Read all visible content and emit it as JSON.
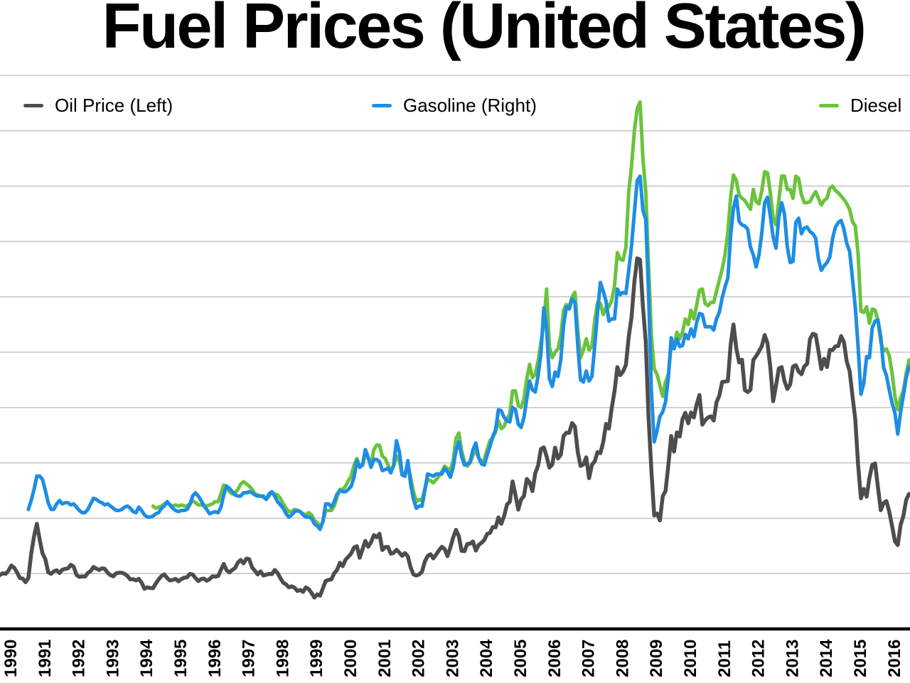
{
  "chart_data": {
    "type": "line",
    "title": "Fuel Prices (United States)",
    "grid": "horizontal",
    "h_gridlines": 10,
    "legend_position": "top-row-inside-plot",
    "x_axis": {
      "tick_labels": [
        "1990",
        "1991",
        "1992",
        "1993",
        "1994",
        "1995",
        "1996",
        "1997",
        "1998",
        "1999",
        "2000",
        "2001",
        "2002",
        "2003",
        "2004",
        "2005",
        "2006",
        "2007",
        "2008",
        "2009",
        "2010",
        "2011",
        "2012",
        "2013",
        "2014",
        "2015",
        "2016"
      ],
      "tick_label_rotation_deg": -90,
      "range_start_year": 1989.7,
      "range_end_year": 2016.5
    },
    "left_axis": {
      "min": 0,
      "max": 200,
      "labels_visible": false
    },
    "right_axis": {
      "min": 0,
      "max": 5,
      "labels_visible": false
    },
    "style": {
      "background": "#ffffff",
      "gridline_color": "#c8c8c8",
      "axis_color": "#000000",
      "text_color": "#000000"
    },
    "series": [
      {
        "id": "oil-price",
        "name": "Oil Price (Left)",
        "axis": "left",
        "color": "#4d4d4d",
        "line_width": 5.5,
        "frequency": "monthly",
        "start_year": 1989,
        "start_month": 7,
        "values": [
          19.6,
          18.5,
          19.6,
          20.1,
          19.9,
          21.1,
          22.9,
          22.1,
          20.4,
          18.4,
          18.2,
          16.9,
          18.4,
          27.2,
          33.5,
          38.0,
          32.3,
          27.3,
          25.2,
          20.5,
          19.9,
          20.8,
          21.2,
          20.2,
          21.4,
          21.7,
          21.9,
          23.2,
          22.5,
          19.5,
          18.8,
          19.0,
          18.9,
          20.2,
          20.9,
          22.4,
          21.8,
          21.3,
          21.9,
          21.7,
          20.3,
          19.4,
          19.0,
          20.1,
          20.3,
          20.3,
          19.9,
          19.1,
          17.9,
          18.0,
          17.5,
          18.1,
          16.7,
          14.5,
          15.0,
          14.8,
          14.7,
          16.4,
          17.9,
          19.1,
          19.7,
          18.4,
          17.5,
          17.7,
          18.1,
          17.2,
          18.0,
          18.5,
          18.6,
          19.9,
          19.7,
          18.4,
          17.3,
          18.0,
          18.2,
          17.4,
          18.0,
          19.0,
          18.9,
          19.1,
          21.4,
          23.5,
          21.2,
          20.4,
          21.3,
          22.0,
          24.0,
          24.9,
          23.7,
          25.4,
          25.2,
          22.2,
          21.0,
          19.7,
          20.8,
          19.3,
          19.6,
          19.9,
          19.8,
          21.3,
          20.2,
          18.3,
          16.7,
          16.1,
          15.0,
          15.4,
          14.9,
          13.7,
          14.1,
          13.4,
          15.0,
          14.4,
          13.0,
          11.3,
          12.5,
          12.0,
          14.7,
          17.3,
          17.7,
          17.9,
          20.1,
          21.3,
          23.9,
          22.7,
          25.0,
          26.1,
          27.3,
          29.4,
          29.9,
          25.7,
          28.8,
          31.8,
          29.7,
          31.3,
          33.9,
          33.1,
          34.4,
          28.5,
          29.6,
          29.6,
          27.2,
          27.5,
          28.6,
          27.6,
          26.4,
          27.4,
          26.2,
          22.2,
          19.7,
          19.3,
          19.7,
          20.7,
          24.4,
          26.3,
          27.0,
          25.5,
          26.9,
          28.4,
          29.7,
          28.9,
          26.3,
          29.4,
          33.0,
          35.8,
          33.5,
          28.2,
          28.1,
          30.7,
          30.8,
          31.6,
          28.3,
          30.3,
          31.1,
          32.1,
          34.3,
          34.7,
          36.8,
          36.7,
          40.3,
          38.0,
          40.8,
          44.9,
          46.0,
          53.3,
          48.5,
          43.1,
          46.8,
          48.0,
          54.2,
          53.0,
          49.8,
          56.3,
          59.0,
          65.0,
          65.6,
          62.4,
          58.3,
          59.4,
          65.5,
          61.6,
          62.9,
          69.7,
          70.9,
          70.9,
          74.4,
          73.1,
          63.9,
          58.9,
          59.4,
          62.0,
          54.5,
          59.3,
          60.6,
          63.9,
          63.5,
          67.5,
          74.1,
          72.4,
          79.9,
          85.9,
          94.6,
          91.7,
          93.0,
          95.4,
          105.6,
          112.6,
          125.4,
          133.9,
          133.4,
          116.6,
          103.9,
          76.7,
          57.4,
          41.0,
          41.7,
          39.2,
          48.0,
          49.8,
          59.2,
          69.7,
          64.1,
          71.0,
          69.5,
          75.8,
          78.1,
          74.3,
          78.2,
          76.4,
          81.2,
          84.5,
          73.8,
          75.4,
          76.4,
          76.8,
          75.3,
          81.9,
          84.3,
          89.2,
          89.4,
          89.6,
          102.9,
          110.0,
          101.3,
          96.3,
          97.3,
          86.3,
          85.6,
          86.4,
          97.2,
          98.6,
          100.3,
          102.2,
          106.2,
          103.3,
          94.7,
          82.3,
          87.9,
          94.1,
          94.6,
          89.6,
          86.7,
          88.3,
          94.8,
          95.3,
          93.0,
          92.0,
          94.8,
          95.8,
          104.7,
          106.6,
          106.3,
          100.5,
          93.9,
          97.6,
          94.6,
          100.8,
          100.8,
          102.1,
          102.2,
          105.8,
          103.6,
          96.5,
          93.2,
          84.4,
          75.8,
          59.3,
          47.2,
          50.6,
          47.8,
          54.5,
          59.3,
          59.8,
          51.2,
          42.9,
          45.5,
          46.2,
          42.4,
          37.2,
          31.7,
          30.3,
          37.6,
          40.8,
          46.7,
          48.8
        ]
      },
      {
        "id": "gasoline",
        "name": "Gasoline (Right)",
        "axis": "right",
        "color": "#1e8de4",
        "line_width": 5,
        "frequency": "monthly",
        "start_year": 1990,
        "start_month": 7,
        "values": [
          1.08,
          1.16,
          1.26,
          1.38,
          1.38,
          1.35,
          1.25,
          1.14,
          1.08,
          1.08,
          1.13,
          1.16,
          1.13,
          1.14,
          1.14,
          1.12,
          1.13,
          1.1,
          1.07,
          1.05,
          1.05,
          1.08,
          1.13,
          1.18,
          1.17,
          1.15,
          1.14,
          1.12,
          1.13,
          1.11,
          1.09,
          1.07,
          1.07,
          1.08,
          1.1,
          1.11,
          1.09,
          1.06,
          1.05,
          1.1,
          1.07,
          1.03,
          1.01,
          1.01,
          1.02,
          1.04,
          1.05,
          1.09,
          1.11,
          1.15,
          1.12,
          1.09,
          1.07,
          1.06,
          1.07,
          1.07,
          1.08,
          1.12,
          1.2,
          1.23,
          1.2,
          1.16,
          1.11,
          1.08,
          1.04,
          1.05,
          1.06,
          1.05,
          1.1,
          1.21,
          1.29,
          1.27,
          1.24,
          1.21,
          1.2,
          1.2,
          1.23,
          1.23,
          1.24,
          1.23,
          1.21,
          1.2,
          1.2,
          1.2,
          1.17,
          1.22,
          1.24,
          1.2,
          1.15,
          1.12,
          1.09,
          1.04,
          1.01,
          1.03,
          1.06,
          1.07,
          1.06,
          1.03,
          1.01,
          1.01,
          1.0,
          0.95,
          0.93,
          0.9,
          0.97,
          1.13,
          1.13,
          1.1,
          1.15,
          1.22,
          1.25,
          1.24,
          1.24,
          1.26,
          1.29,
          1.37,
          1.52,
          1.46,
          1.48,
          1.62,
          1.55,
          1.46,
          1.53,
          1.53,
          1.51,
          1.43,
          1.44,
          1.45,
          1.41,
          1.48,
          1.7,
          1.6,
          1.39,
          1.38,
          1.52,
          1.31,
          1.17,
          1.09,
          1.11,
          1.11,
          1.25,
          1.4,
          1.39,
          1.38,
          1.4,
          1.4,
          1.4,
          1.45,
          1.42,
          1.37,
          1.46,
          1.61,
          1.69,
          1.56,
          1.48,
          1.49,
          1.51,
          1.62,
          1.68,
          1.55,
          1.49,
          1.48,
          1.57,
          1.65,
          1.74,
          1.8,
          1.98,
          1.97,
          1.91,
          1.88,
          1.87,
          2.0,
          1.98,
          1.85,
          1.82,
          1.91,
          2.08,
          2.24,
          2.16,
          2.14,
          2.29,
          2.49,
          2.9,
          2.72,
          2.26,
          2.19,
          2.32,
          2.28,
          2.43,
          2.74,
          2.91,
          2.89,
          2.98,
          2.95,
          2.56,
          2.25,
          2.23,
          2.33,
          2.24,
          2.28,
          2.56,
          2.86,
          3.13,
          3.05,
          2.96,
          2.78,
          2.8,
          2.8,
          3.07,
          3.02,
          3.04,
          3.03,
          3.24,
          3.46,
          3.76,
          4.05,
          4.09,
          3.78,
          3.7,
          3.05,
          2.15,
          1.69,
          1.79,
          1.92,
          1.96,
          2.05,
          2.27,
          2.63,
          2.53,
          2.62,
          2.55,
          2.56,
          2.66,
          2.62,
          2.71,
          2.64,
          2.77,
          2.85,
          2.84,
          2.73,
          2.73,
          2.73,
          2.7,
          2.8,
          2.86,
          2.99,
          3.09,
          3.17,
          3.56,
          3.8,
          3.91,
          3.68,
          3.65,
          3.64,
          3.61,
          3.45,
          3.38,
          3.27,
          3.38,
          3.58,
          3.85,
          3.9,
          3.73,
          3.54,
          3.44,
          3.72,
          3.85,
          3.75,
          3.45,
          3.31,
          3.32,
          3.67,
          3.71,
          3.57,
          3.62,
          3.63,
          3.59,
          3.57,
          3.53,
          3.34,
          3.24,
          3.28,
          3.31,
          3.36,
          3.53,
          3.63,
          3.67,
          3.69,
          3.61,
          3.48,
          3.41,
          3.17,
          2.91,
          2.55,
          2.12,
          2.22,
          2.46,
          2.45,
          2.72,
          2.78,
          2.79,
          2.64,
          2.36,
          2.29,
          2.16,
          2.04,
          1.95,
          1.76,
          1.96,
          2.11,
          2.27,
          2.37
        ]
      },
      {
        "id": "diesel",
        "name": "Diesel",
        "axis": "right",
        "color": "#6bc33c",
        "line_width": 5,
        "frequency": "monthly",
        "start_year": 1994,
        "start_month": 3,
        "values": [
          1.11,
          1.09,
          1.1,
          1.11,
          1.13,
          1.14,
          1.12,
          1.11,
          1.12,
          1.11,
          1.12,
          1.11,
          1.11,
          1.13,
          1.16,
          1.14,
          1.12,
          1.12,
          1.12,
          1.11,
          1.12,
          1.13,
          1.15,
          1.15,
          1.22,
          1.3,
          1.29,
          1.24,
          1.22,
          1.23,
          1.26,
          1.31,
          1.33,
          1.31,
          1.29,
          1.26,
          1.22,
          1.21,
          1.2,
          1.19,
          1.17,
          1.2,
          1.23,
          1.22,
          1.21,
          1.18,
          1.13,
          1.09,
          1.06,
          1.06,
          1.08,
          1.07,
          1.06,
          1.04,
          1.03,
          1.05,
          1.03,
          0.98,
          0.96,
          0.92,
          0.97,
          1.07,
          1.07,
          1.07,
          1.11,
          1.19,
          1.26,
          1.26,
          1.29,
          1.34,
          1.38,
          1.48,
          1.54,
          1.47,
          1.48,
          1.58,
          1.54,
          1.48,
          1.62,
          1.66,
          1.66,
          1.56,
          1.54,
          1.48,
          1.43,
          1.47,
          1.56,
          1.52,
          1.39,
          1.4,
          1.49,
          1.37,
          1.24,
          1.15,
          1.17,
          1.16,
          1.27,
          1.35,
          1.34,
          1.32,
          1.35,
          1.38,
          1.42,
          1.47,
          1.45,
          1.43,
          1.52,
          1.72,
          1.77,
          1.61,
          1.51,
          1.47,
          1.5,
          1.57,
          1.61,
          1.55,
          1.51,
          1.53,
          1.62,
          1.7,
          1.73,
          1.78,
          1.88,
          1.81,
          1.83,
          1.9,
          1.94,
          2.15,
          2.15,
          2.02,
          2.0,
          2.08,
          2.26,
          2.39,
          2.27,
          2.3,
          2.42,
          2.59,
          2.75,
          3.07,
          2.55,
          2.45,
          2.5,
          2.53,
          2.65,
          2.88,
          2.93,
          2.91,
          3.0,
          3.04,
          2.7,
          2.45,
          2.52,
          2.62,
          2.52,
          2.55,
          2.79,
          2.95,
          2.94,
          2.84,
          2.91,
          2.91,
          2.97,
          3.1,
          3.4,
          3.34,
          3.33,
          3.45,
          3.95,
          4.18,
          4.5,
          4.7,
          4.76,
          4.25,
          3.95,
          3.3,
          2.65,
          2.35,
          2.3,
          2.2,
          2.1,
          2.23,
          2.3,
          2.56,
          2.55,
          2.68,
          2.62,
          2.68,
          2.8,
          2.75,
          2.88,
          2.8,
          2.93,
          3.06,
          3.07,
          2.94,
          2.92,
          2.95,
          2.95,
          3.05,
          3.15,
          3.25,
          3.38,
          3.58,
          3.91,
          4.1,
          4.05,
          3.92,
          3.89,
          3.87,
          3.83,
          3.79,
          3.97,
          3.86,
          3.84,
          3.96,
          4.13,
          4.12,
          3.94,
          3.71,
          3.65,
          3.87,
          4.09,
          4.09,
          3.97,
          3.97,
          3.89,
          4.09,
          4.07,
          3.92,
          3.85,
          3.85,
          3.86,
          3.91,
          3.95,
          3.89,
          3.83,
          3.87,
          3.89,
          3.98,
          4.0,
          3.96,
          3.94,
          3.91,
          3.88,
          3.84,
          3.79,
          3.68,
          3.64,
          3.39,
          2.87,
          2.86,
          2.91,
          2.76,
          2.89,
          2.88,
          2.79,
          2.59,
          2.51,
          2.53,
          2.47,
          2.31,
          2.1,
          1.98,
          2.09,
          2.15,
          2.31,
          2.43
        ]
      }
    ]
  }
}
